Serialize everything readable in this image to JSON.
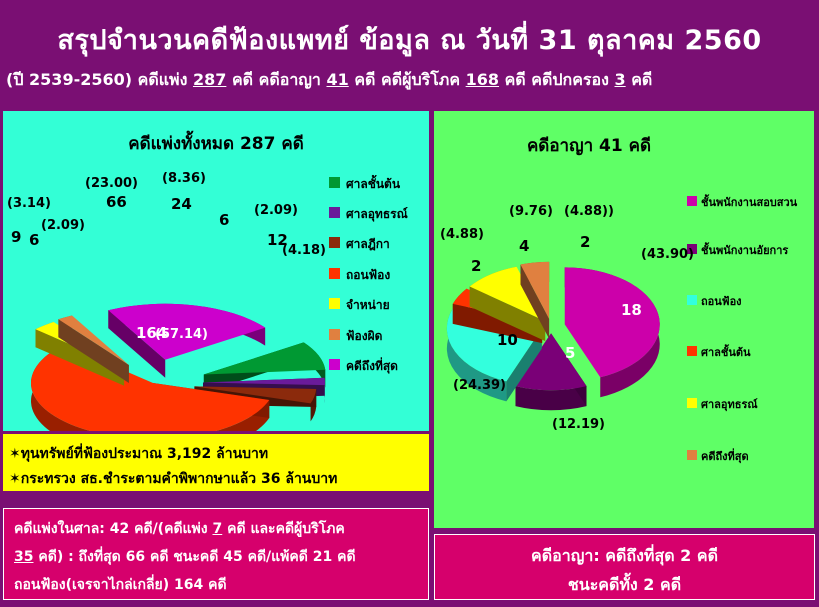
{
  "header": {
    "title": "สรุปจำนวนคดีฟ้องแพทย์  ข้อมูล ณ วันที่ 31 ตุลาคม 2560",
    "sub_prefix": "(ปี 2539-2560) คดีแพ่ง ",
    "sub_civil": "287",
    "sub_t1": " คดี คดีอาญา ",
    "sub_criminal": "41",
    "sub_t2": " คดี คดีผู้บริโภค ",
    "sub_consumer": "168",
    "sub_t3": " คดี คดีปกครอง ",
    "sub_admin": "3",
    "sub_t4": " คดี"
  },
  "chart_data": [
    {
      "type": "pie",
      "title": "คดีแพ่งทั้งหมด 287 คดี",
      "series": [
        {
          "label": "ศาลชั้นต้น",
          "value": 24,
          "percent": "(8.36)",
          "color": "#009933"
        },
        {
          "label": "ศาลอุทธรณ์",
          "value": 6,
          "percent": "(2.09)",
          "color": "#6a1b9a"
        },
        {
          "label": "ศาลฎีกา",
          "value": 12,
          "percent": "(4.18)",
          "color": "#8b2a0c"
        },
        {
          "label": "ถอนฟ้อง",
          "value": 164,
          "percent": "(57.14)",
          "color": "#ff3300"
        },
        {
          "label": "จำหน่าย",
          "value": 9,
          "percent": "(3.14)",
          "color": "#ffff00"
        },
        {
          "label": "ฟ้องผิด",
          "value": 6,
          "percent": "(2.09)",
          "color": "#e08040"
        },
        {
          "label": "คดีถึงที่สุด",
          "value": 66,
          "percent": "(23.00)",
          "color": "#cc00cc"
        }
      ]
    },
    {
      "type": "pie",
      "title": "คดีอาญา 41 คดี",
      "series": [
        {
          "label": "ชั้นพนักงานสอบสวน",
          "value": 18,
          "percent": "(43.90)",
          "color": "#cc00aa"
        },
        {
          "label": "ชั้นพนักงานอัยการ",
          "value": 5,
          "percent": "(12.19)",
          "color": "#7a0077"
        },
        {
          "label": "ถอนฟ้อง",
          "value": 10,
          "percent": "(24.39)",
          "color": "#33ffdd"
        },
        {
          "label": "ศาลชั้นต้น",
          "value": 2,
          "percent": "(4.88)",
          "color": "#ff3300"
        },
        {
          "label": "ศาลอุทธรณ์",
          "value": 4,
          "percent": "(9.76)",
          "color": "#ffff00"
        },
        {
          "label": "คดีถึงที่สุด",
          "value": 2,
          "percent": "(4.88))",
          "color": "#e08040"
        }
      ]
    }
  ],
  "notes": {
    "line1": "ทุนทรัพย์ที่ฟ้องประมาณ 3,192 ล้านบาท",
    "line2": "กระทรวง สธ.ชำระตามคำพิพากษาแล้ว 36 ล้านบาท",
    "star": "✶"
  },
  "civil_box": {
    "l1a": "คดีแพ่งในศาล: 42 คดี/(คดีแพ่ง ",
    "l1b": "7",
    "l1c": " คดี และคดีผู้บริโภค",
    "l2a": "35",
    "l2b": " คดี) : ถึงที่สุด 66 คดี ชนะคดี 45 คดี/แพ้คดี 21 คดี",
    "l3": "ถอนฟ้อง(เจรจาไกล่เกลี่ย) 164 คดี"
  },
  "criminal_box": {
    "l1": "คดีอาญา: คดีถึงที่สุด 2 คดี",
    "l2": "ชนะคดีทั้ง 2 คดี"
  }
}
